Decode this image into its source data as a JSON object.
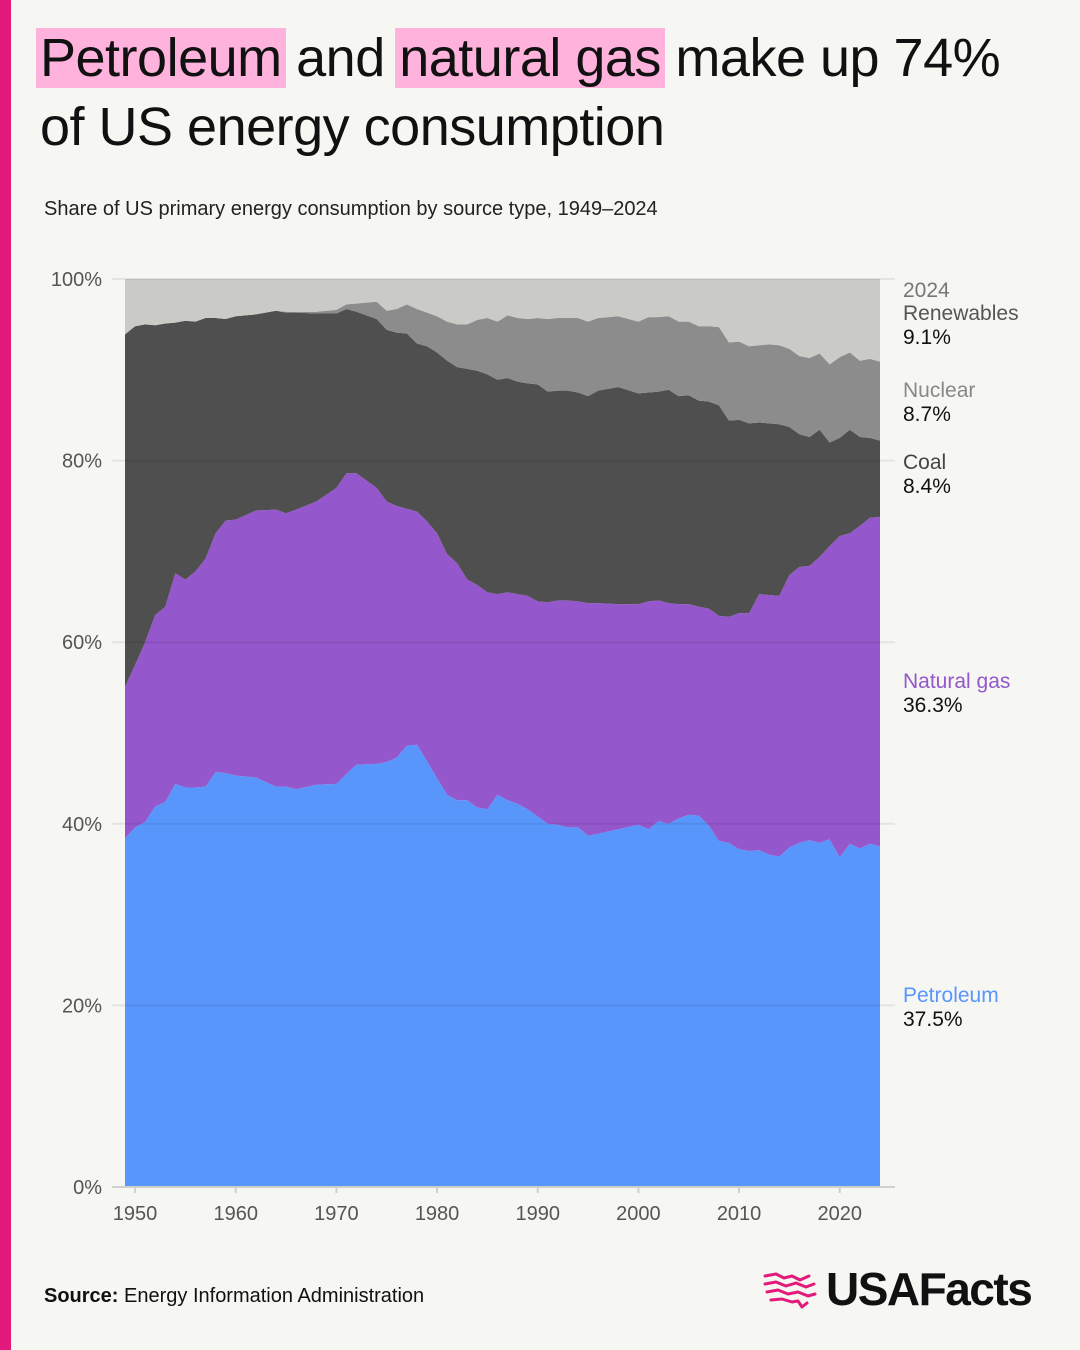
{
  "colors": {
    "accent": "#e21a7c",
    "highlight": "#ffb3dc",
    "petroleum": "#5996fc",
    "natural_gas": "#9457cc",
    "coal": "#4f4f4f",
    "nuclear": "#8c8c8c",
    "renewables": "#cacac6"
  },
  "title": {
    "highlight1": "Petroleum",
    "join1": " and ",
    "highlight2": "natural gas",
    "rest": " make up 74% of US energy consumption"
  },
  "subtitle": "Share of US primary energy consumption by source type, 1949–2024",
  "source": {
    "label": "Source:",
    "text": " Energy Information Administration"
  },
  "logo": {
    "text": "USAFacts",
    "icon": "us-map-stripes-icon"
  },
  "chart_data": {
    "type": "area",
    "stacked": true,
    "normalized": true,
    "x_tick_labels": [
      "1950",
      "1960",
      "1970",
      "1980",
      "1990",
      "2000",
      "2010",
      "2020"
    ],
    "y_tick_labels": [
      "0%",
      "20%",
      "40%",
      "60%",
      "80%",
      "100%"
    ],
    "ylim": [
      0,
      100
    ],
    "grid": "horizontal",
    "x_keys": [
      1949,
      1950,
      1951,
      1952,
      1953,
      1954,
      1955,
      1956,
      1957,
      1958,
      1959,
      1960,
      1962,
      1964,
      1965,
      1966,
      1968,
      1970,
      1971,
      1972,
      1974,
      1975,
      1976,
      1977,
      1978,
      1979,
      1980,
      1981,
      1982,
      1983,
      1984,
      1985,
      1986,
      1987,
      1988,
      1989,
      1990,
      1991,
      1992,
      1993,
      1994,
      1995,
      1996,
      1998,
      2000,
      2001,
      2002,
      2003,
      2004,
      2005,
      2006,
      2007,
      2008,
      2009,
      2010,
      2011,
      2012,
      2013,
      2014,
      2015,
      2016,
      2017,
      2018,
      2019,
      2020,
      2021,
      2022,
      2023,
      2024
    ],
    "series": [
      {
        "name": "Petroleum",
        "values": [
          38.4,
          39.6,
          40.2,
          41.9,
          42.4,
          44.4,
          44.0,
          44.0,
          44.1,
          45.7,
          45.6,
          45.3,
          45.1,
          44.1,
          44.1,
          43.8,
          44.3,
          44.4,
          45.5,
          46.5,
          46.6,
          46.8,
          47.3,
          48.6,
          48.7,
          46.9,
          45.0,
          43.2,
          42.6,
          42.6,
          41.8,
          41.6,
          43.2,
          42.6,
          42.2,
          41.6,
          40.8,
          40.0,
          39.9,
          39.6,
          39.6,
          38.7,
          38.9,
          39.4,
          39.9,
          39.4,
          40.3,
          40.0,
          40.6,
          41.0,
          40.9,
          39.8,
          38.1,
          37.9,
          37.2,
          37.0,
          37.1,
          36.6,
          36.4,
          37.4,
          37.9,
          38.2,
          37.9,
          38.3,
          36.3,
          37.8,
          37.3,
          37.8,
          37.5
        ]
      },
      {
        "name": "Natural gas",
        "values": [
          16.7,
          17.9,
          19.8,
          21.1,
          21.5,
          23.2,
          22.9,
          23.8,
          25.1,
          26.3,
          27.8,
          28.2,
          29.4,
          30.5,
          30.1,
          30.8,
          31.2,
          32.6,
          33.1,
          32.1,
          30.4,
          28.7,
          27.7,
          26.1,
          25.7,
          26.4,
          27.0,
          26.5,
          26.1,
          24.3,
          24.5,
          23.9,
          22.1,
          22.9,
          23.1,
          23.5,
          23.7,
          24.4,
          24.7,
          25.0,
          24.9,
          25.6,
          25.4,
          24.8,
          24.3,
          25.1,
          24.3,
          24.3,
          23.6,
          23.2,
          23.0,
          23.9,
          24.8,
          24.9,
          26.0,
          26.2,
          28.2,
          28.6,
          28.7,
          30.0,
          30.4,
          30.2,
          31.5,
          32.3,
          35.4,
          34.2,
          35.5,
          35.9,
          36.3
        ]
      },
      {
        "name": "Coal",
        "values": [
          38.8,
          37.3,
          35.0,
          31.9,
          31.2,
          27.6,
          28.5,
          27.5,
          26.5,
          23.7,
          22.2,
          22.4,
          21.6,
          21.9,
          22.1,
          21.7,
          20.7,
          19.2,
          18.1,
          17.8,
          18.6,
          18.9,
          19.1,
          19.3,
          18.5,
          19.3,
          19.9,
          21.3,
          21.6,
          23.2,
          23.6,
          24.0,
          23.6,
          23.6,
          23.4,
          23.4,
          23.9,
          23.2,
          23.1,
          23.1,
          23.0,
          22.8,
          23.4,
          23.9,
          23.2,
          23.0,
          23.0,
          23.5,
          22.9,
          23.0,
          22.7,
          22.8,
          23.2,
          21.6,
          21.3,
          20.9,
          18.9,
          18.9,
          18.9,
          16.3,
          14.6,
          14.2,
          14.0,
          11.4,
          10.8,
          11.4,
          9.8,
          8.8,
          8.4
        ]
      },
      {
        "name": "Nuclear",
        "values": [
          0.0,
          0.0,
          0.0,
          0.0,
          0.0,
          0.0,
          0.0,
          0.0,
          0.0,
          0.0,
          0.0,
          0.0,
          0.0,
          0.0,
          0.1,
          0.1,
          0.2,
          0.4,
          0.5,
          0.9,
          1.9,
          2.1,
          2.6,
          3.2,
          3.8,
          3.7,
          4.0,
          4.3,
          4.7,
          4.9,
          5.6,
          6.2,
          6.4,
          6.9,
          7.0,
          7.1,
          7.3,
          8.0,
          8.0,
          8.0,
          8.2,
          8.2,
          8.0,
          7.8,
          7.9,
          8.3,
          8.2,
          8.1,
          8.2,
          8.1,
          8.2,
          8.3,
          8.6,
          8.6,
          8.6,
          8.5,
          8.5,
          8.7,
          8.7,
          8.6,
          8.6,
          8.7,
          8.4,
          8.6,
          8.9,
          8.5,
          8.4,
          8.7,
          8.7
        ]
      },
      {
        "name": "Renewables",
        "values": [
          6.1,
          5.2,
          5.0,
          5.1,
          4.9,
          4.8,
          4.6,
          4.7,
          4.3,
          4.3,
          4.4,
          4.1,
          3.9,
          3.5,
          3.6,
          3.6,
          3.6,
          3.4,
          2.8,
          2.7,
          2.5,
          3.5,
          3.3,
          2.8,
          3.3,
          3.7,
          4.1,
          4.7,
          5.0,
          5.0,
          4.5,
          4.3,
          4.7,
          4.0,
          4.3,
          4.4,
          4.3,
          4.4,
          4.3,
          4.3,
          4.3,
          4.7,
          4.3,
          4.1,
          4.7,
          4.2,
          4.2,
          4.1,
          4.7,
          4.7,
          5.2,
          5.2,
          5.3,
          7.0,
          6.9,
          7.4,
          7.3,
          7.2,
          7.3,
          7.7,
          8.5,
          8.7,
          8.2,
          9.4,
          8.6,
          8.1,
          9.0,
          8.8,
          9.1
        ]
      }
    ],
    "end_labels": {
      "year": "2024",
      "items": [
        {
          "name": "Renewables",
          "value": "9.1%"
        },
        {
          "name": "Nuclear",
          "value": "8.7%"
        },
        {
          "name": "Coal",
          "value": "8.4%"
        },
        {
          "name": "Natural gas",
          "value": "36.3%"
        },
        {
          "name": "Petroleum",
          "value": "37.5%"
        }
      ]
    }
  }
}
